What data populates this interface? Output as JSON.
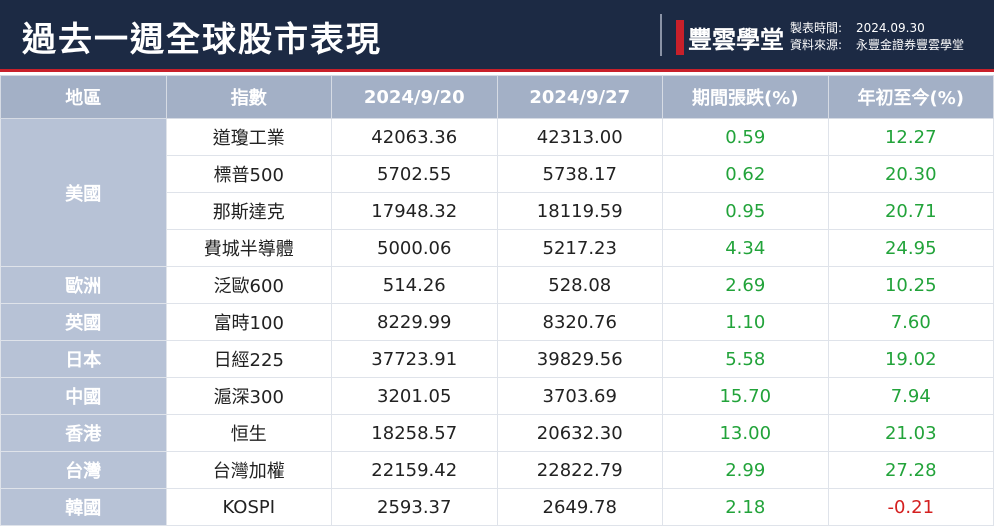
{
  "header": {
    "title": "過去一週全球股市表現",
    "brand": "豐雲學堂",
    "meta": [
      {
        "label": "製表時間:",
        "value": "2024.09.30"
      },
      {
        "label": "資料來源:",
        "value": "永豐金證券豐雲學堂"
      }
    ]
  },
  "table": {
    "columns": [
      "地區",
      "指數",
      "2024/9/20",
      "2024/9/27",
      "期間張跌(%)",
      "年初至今(%)"
    ],
    "groups": [
      {
        "region": "美國",
        "rows": [
          [
            "道瓊工業",
            "42063.36",
            "42313.00",
            "0.59",
            "12.27"
          ],
          [
            "標普500",
            "5702.55",
            "5738.17",
            "0.62",
            "20.30"
          ],
          [
            "那斯達克",
            "17948.32",
            "18119.59",
            "0.95",
            "20.71"
          ],
          [
            "費城半導體",
            "5000.06",
            "5217.23",
            "4.34",
            "24.95"
          ]
        ]
      },
      {
        "region": "歐洲",
        "rows": [
          [
            "泛歐600",
            "514.26",
            "528.08",
            "2.69",
            "10.25"
          ]
        ]
      },
      {
        "region": "英國",
        "rows": [
          [
            "富時100",
            "8229.99",
            "8320.76",
            "1.10",
            "7.60"
          ]
        ]
      },
      {
        "region": "日本",
        "rows": [
          [
            "日經225",
            "37723.91",
            "39829.56",
            "5.58",
            "19.02"
          ]
        ]
      },
      {
        "region": "中國",
        "rows": [
          [
            "滬深300",
            "3201.05",
            "3703.69",
            "15.70",
            "7.94"
          ]
        ]
      },
      {
        "region": "香港",
        "rows": [
          [
            "恒生",
            "18258.57",
            "20632.30",
            "13.00",
            "21.03"
          ]
        ]
      },
      {
        "region": "台灣",
        "rows": [
          [
            "台灣加權",
            "22159.42",
            "22822.79",
            "2.99",
            "27.28"
          ]
        ]
      },
      {
        "region": "韓國",
        "rows": [
          [
            "KOSPI",
            "2593.37",
            "2649.78",
            "2.18",
            "-0.21"
          ]
        ]
      }
    ]
  }
}
